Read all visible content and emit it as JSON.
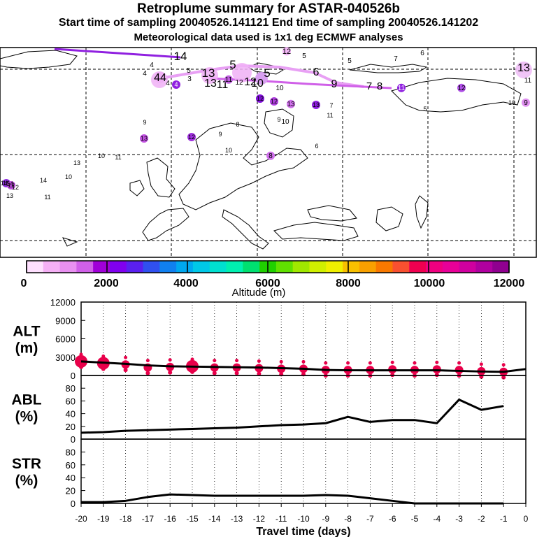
{
  "header": {
    "title": "Retroplume summary for ASTAR-040526b",
    "sampling": "Start time of sampling 20040526.141121     End time of sampling 20040526.141202",
    "meteo": "Meteorological data used is 1x1 deg ECMWF analyses"
  },
  "colorbar": {
    "label": "Altitude (m)",
    "ticks": [
      "0",
      "2000",
      "4000",
      "6000",
      "8000",
      "10000",
      "12000"
    ],
    "colors": [
      "#ffe0ff",
      "#f5b0f5",
      "#e890f0",
      "#d060e8",
      "#a000d8",
      "#8000f0",
      "#5a20f0",
      "#3050f0",
      "#1080f0",
      "#00a8f0",
      "#00c8e8",
      "#00e0d0",
      "#00f0b0",
      "#00e070",
      "#20d000",
      "#60e000",
      "#a0e800",
      "#d0f000",
      "#f0f000",
      "#f8c000",
      "#f8a000",
      "#f87800",
      "#f85030",
      "#f00050",
      "#f00080",
      "#e80098",
      "#d000a0",
      "#b000a0",
      "#900090"
    ]
  },
  "map": {
    "labels": [
      "14",
      "13",
      "5",
      "5",
      "6",
      "9",
      "7",
      "8",
      "12",
      "5",
      "5",
      "5",
      "7",
      "6",
      "13",
      "11",
      "9",
      "4",
      "4",
      "44",
      "4",
      "4",
      "3",
      "13",
      "11",
      "11",
      "12",
      "12",
      "10",
      "10",
      "11",
      "12",
      "12",
      "12",
      "13",
      "7",
      "11",
      "13",
      "10",
      "5",
      "10",
      "8",
      "9",
      "9",
      "6",
      "8",
      "9",
      "12",
      "13",
      "11",
      "10",
      "10",
      "10",
      "13",
      "14",
      "11",
      "16",
      "12",
      "12",
      "13",
      "14",
      "14"
    ]
  },
  "chart_data": [
    {
      "type": "line",
      "name": "ALT",
      "ylabel": "ALT\n(m)",
      "ylim": [
        0,
        12000
      ],
      "yticks": [
        "0",
        "3000",
        "6000",
        "9000",
        "12000"
      ],
      "x": [
        -20,
        -19,
        -18,
        -17,
        -16,
        -15,
        -14,
        -13,
        -12,
        -11,
        -10,
        -9,
        -8,
        -7,
        -6,
        -5,
        -4,
        -3,
        -2,
        -1,
        0
      ],
      "values": [
        2300,
        2100,
        1900,
        1650,
        1500,
        1450,
        1400,
        1350,
        1300,
        1200,
        1100,
        900,
        850,
        850,
        850,
        850,
        850,
        750,
        650,
        600,
        1050
      ],
      "markers": [
        2300,
        2000,
        1800,
        1300,
        1400,
        1500,
        1300,
        1300,
        1200,
        1100,
        1100,
        900,
        900,
        900,
        1000,
        900,
        1000,
        900,
        700,
        600,
        null
      ]
    },
    {
      "type": "line",
      "name": "ABL",
      "ylabel": "ABL\n(%)",
      "ylim": [
        0,
        100
      ],
      "yticks": [
        "0",
        "20",
        "40",
        "60",
        "80"
      ],
      "x": [
        -20,
        -19,
        -18,
        -17,
        -16,
        -15,
        -14,
        -13,
        -12,
        -11,
        -10,
        -9,
        -8,
        -7,
        -6,
        -5,
        -4,
        -3,
        -2,
        -1
      ],
      "values": [
        10,
        11,
        13,
        14,
        15,
        16,
        17,
        18,
        20,
        22,
        23,
        25,
        35,
        27,
        30,
        30,
        25,
        62,
        46,
        52
      ]
    },
    {
      "type": "line",
      "name": "STR",
      "ylabel": "STR\n(%)",
      "ylim": [
        0,
        100
      ],
      "yticks": [
        "0",
        "20",
        "40",
        "60",
        "80"
      ],
      "x": [
        -20,
        -19,
        -18,
        -17,
        -16,
        -15,
        -14,
        -13,
        -12,
        -11,
        -10,
        -9,
        -8,
        -7,
        -6,
        -5,
        -4,
        -3,
        -2,
        -1
      ],
      "values": [
        2,
        2,
        4,
        10,
        14,
        13,
        12,
        12,
        12,
        12,
        12,
        13,
        12,
        8,
        4,
        0,
        0,
        0,
        0,
        0
      ],
      "xlabel": "Travel time (days)",
      "xticks": [
        "-20",
        "-19",
        "-18",
        "-17",
        "-16",
        "-15",
        "-14",
        "-13",
        "-12",
        "-11",
        "-10",
        "-9",
        "-8",
        "-7",
        "-6",
        "-5",
        "-4",
        "-3",
        "-2",
        "-1",
        "0"
      ]
    }
  ]
}
